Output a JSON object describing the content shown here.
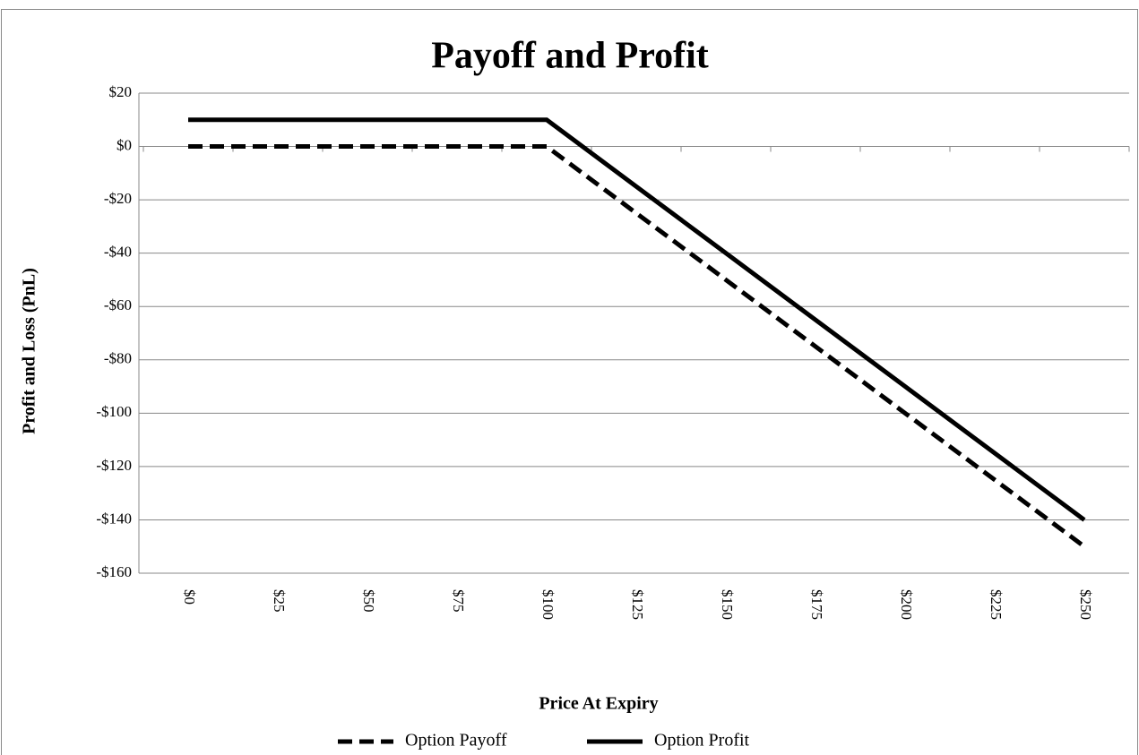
{
  "chart_data": {
    "type": "line",
    "title": "Payoff and Profit",
    "x_label": "Price At Expiry",
    "y_label": "Profit and Loss (PnL)",
    "categories": [
      "$0",
      "$25",
      "$50",
      "$75",
      "$100",
      "$125",
      "$150",
      "$175",
      "$200",
      "$225",
      "$250"
    ],
    "series": [
      {
        "name": "Option Payoff",
        "color": "#000000",
        "line_style": "dashed",
        "values": [
          0,
          0,
          0,
          0,
          0,
          -25,
          -50,
          -75,
          -100,
          -125,
          -150
        ]
      },
      {
        "name": "Option Profit",
        "color": "#000000",
        "line_style": "solid",
        "values": [
          10,
          10,
          10,
          10,
          10,
          -15,
          -40,
          -65,
          -90,
          -115,
          -140
        ]
      }
    ],
    "ylim": [
      -160,
      20
    ],
    "yticks": [
      {
        "value": -160,
        "label": "-$160"
      },
      {
        "value": -140,
        "label": "-$140"
      },
      {
        "value": -120,
        "label": "-$120"
      },
      {
        "value": -100,
        "label": "-$100"
      },
      {
        "value": -80,
        "label": "-$80"
      },
      {
        "value": -60,
        "label": "-$60"
      },
      {
        "value": -40,
        "label": "-$40"
      },
      {
        "value": -20,
        "label": "-$20"
      },
      {
        "value": 0,
        "label": "$0"
      },
      {
        "value": 20,
        "label": "$20"
      }
    ],
    "grid": true,
    "legend": "bottom"
  }
}
